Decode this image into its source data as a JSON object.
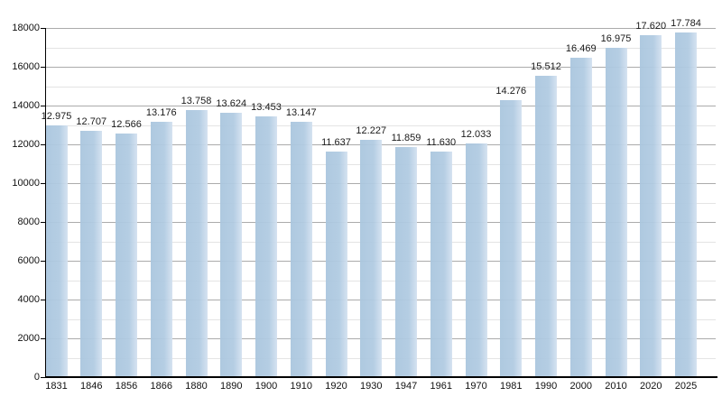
{
  "chart_data": {
    "type": "bar",
    "title": "",
    "xlabel": "",
    "ylabel": "",
    "categories": [
      "1831",
      "1846",
      "1856",
      "1866",
      "1880",
      "1890",
      "1900",
      "1910",
      "1920",
      "1930",
      "1947",
      "1961",
      "1970",
      "1981",
      "1990",
      "2000",
      "2010",
      "2020",
      "2025"
    ],
    "values": [
      12975,
      12707,
      12566,
      13176,
      13758,
      13624,
      13453,
      13147,
      11637,
      12227,
      11859,
      11630,
      12033,
      14276,
      15512,
      16469,
      16975,
      17620,
      17784
    ],
    "bar_labels": [
      "12.975",
      "12.707",
      "12.566",
      "13.176",
      "13.758",
      "13.624",
      "13.453",
      "13.147",
      "11.637",
      "12.227",
      "11.859",
      "11.630",
      "12.033",
      "14.276",
      "15.512",
      "16.469",
      "16.975",
      "17.620",
      "17.784"
    ],
    "ylim": [
      0,
      18000
    ],
    "y_major_step": 2000,
    "y_minor_step": 1000,
    "y_tick_labels": [
      "0",
      "2000",
      "4000",
      "6000",
      "8000",
      "10000",
      "12000",
      "14000",
      "16000",
      "18000"
    ],
    "grid": "on",
    "legend": "none"
  },
  "colors": {
    "bar_fill": "#b1cbe2",
    "bar_fill_light": "#d3e1f0",
    "gridline_major": "#ababab",
    "gridline_minor": "#e4e4e4",
    "axis": "#000000",
    "text": "#111111",
    "background": "#ffffff"
  }
}
